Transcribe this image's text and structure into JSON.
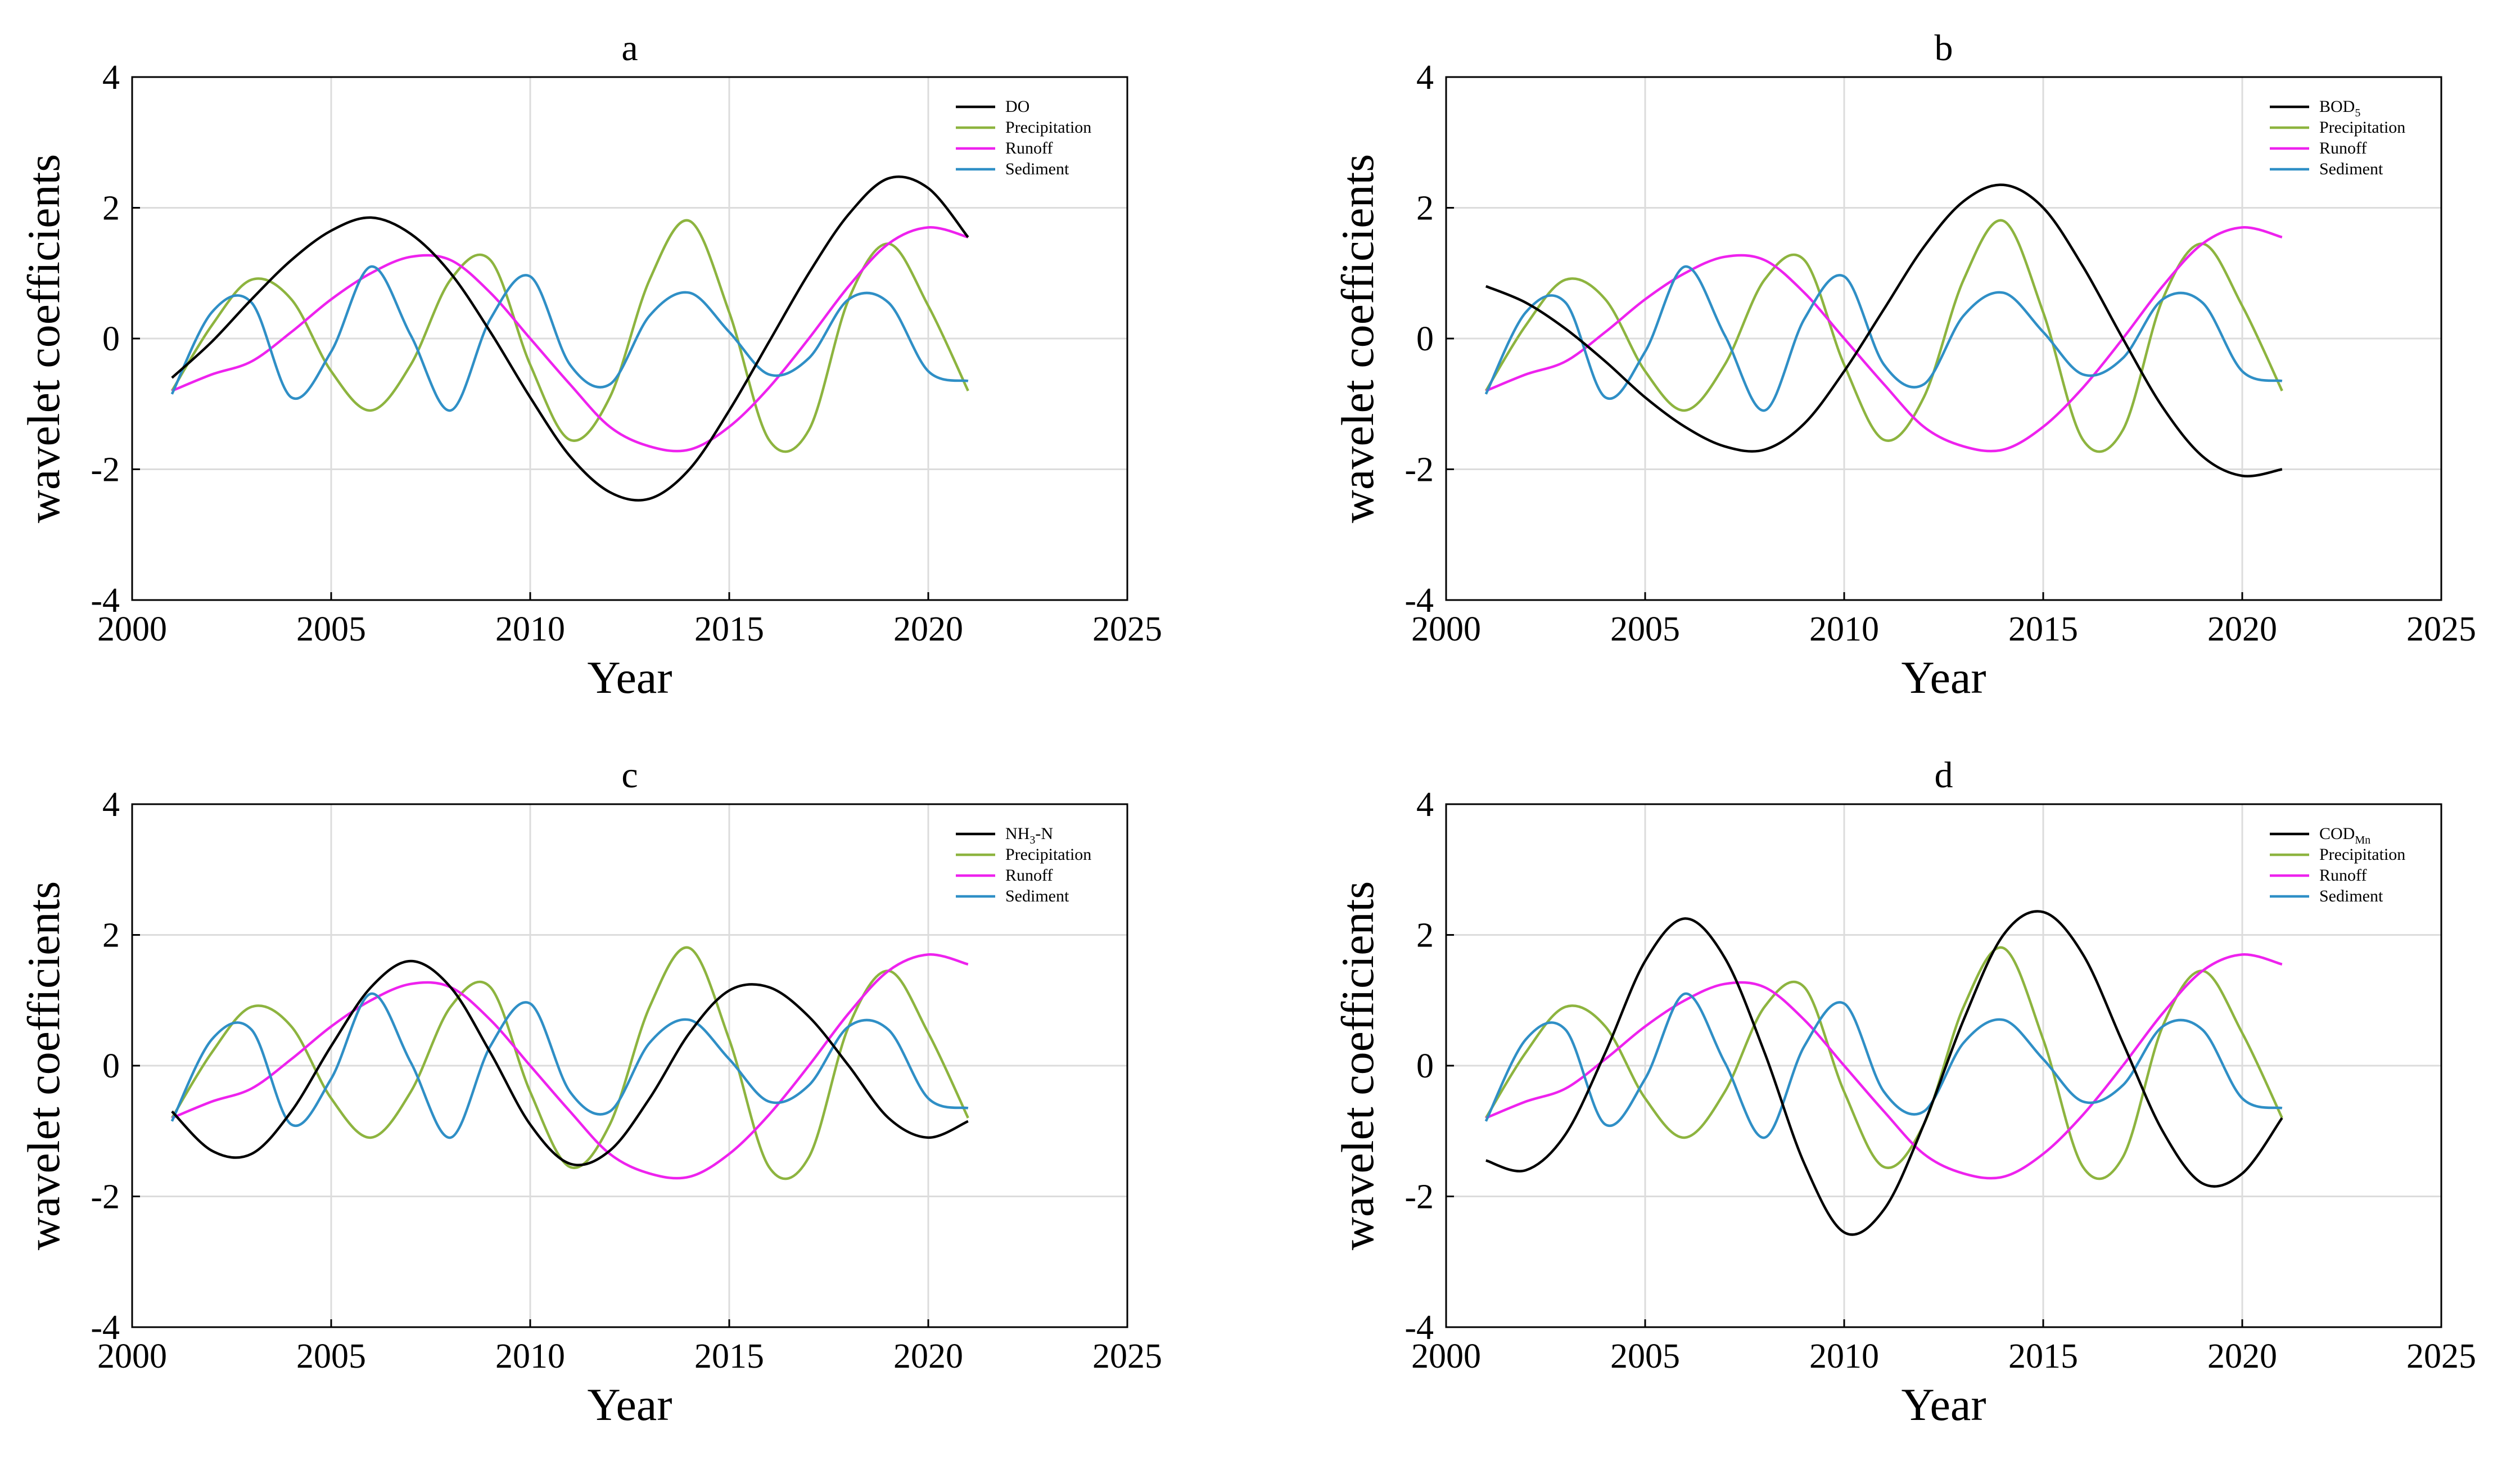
{
  "figure": {
    "series_colors": {
      "target": "#000000",
      "Precipitation": "#8db43f",
      "Runoff": "#ee22ee",
      "Sediment": "#2f8fc6"
    },
    "axis_defaults": {
      "xlabel": "Year",
      "ylabel": "wavelet coefficients",
      "xlim": [
        2000,
        2025
      ],
      "ylim": [
        -4,
        4
      ],
      "xticks": [
        2000,
        2005,
        2010,
        2015,
        2020,
        2025
      ],
      "yticks": [
        -4,
        -2,
        0,
        2,
        4
      ],
      "grid": true
    }
  },
  "chart_data": [
    {
      "panel": "a",
      "type": "line",
      "title": "a",
      "xlabel": "Year",
      "ylabel": "wavelet coefficients",
      "xlim": [
        2000,
        2025
      ],
      "ylim": [
        -4,
        4
      ],
      "legend_position": "top-right",
      "target_legend": {
        "main": "DO",
        "sub": ""
      },
      "x": [
        2001,
        2002,
        2003,
        2004,
        2005,
        2006,
        2007,
        2008,
        2009,
        2010,
        2011,
        2012,
        2013,
        2014,
        2015,
        2016,
        2017,
        2018,
        2019,
        2020,
        2021
      ],
      "series": [
        {
          "name": "DO",
          "key": "target",
          "values": [
            -0.6,
            -0.05,
            0.6,
            1.2,
            1.65,
            1.85,
            1.6,
            1.0,
            0.1,
            -0.9,
            -1.8,
            -2.35,
            -2.45,
            -2.0,
            -1.1,
            -0.05,
            1.0,
            1.9,
            2.45,
            2.3,
            1.55
          ]
        },
        {
          "name": "Precipitation",
          "key": "Precipitation",
          "values": [
            -0.8,
            0.2,
            0.9,
            0.6,
            -0.5,
            -1.1,
            -0.4,
            0.9,
            1.2,
            -0.4,
            -1.55,
            -0.9,
            0.9,
            1.8,
            0.4,
            -1.55,
            -1.4,
            0.6,
            1.45,
            0.5,
            -0.8
          ]
        },
        {
          "name": "Runoff",
          "key": "Runoff",
          "values": [
            -0.8,
            -0.55,
            -0.35,
            0.1,
            0.6,
            1.0,
            1.25,
            1.2,
            0.7,
            0.0,
            -0.7,
            -1.35,
            -1.65,
            -1.7,
            -1.35,
            -0.75,
            0.0,
            0.8,
            1.45,
            1.7,
            1.55
          ]
        },
        {
          "name": "Sediment",
          "key": "Sediment",
          "values": [
            -0.85,
            0.4,
            0.55,
            -0.9,
            -0.2,
            1.1,
            0.05,
            -1.1,
            0.3,
            0.95,
            -0.4,
            -0.7,
            0.35,
            0.7,
            0.1,
            -0.55,
            -0.3,
            0.6,
            0.55,
            -0.5,
            -0.65
          ]
        }
      ]
    },
    {
      "panel": "b",
      "type": "line",
      "title": "b",
      "xlabel": "Year",
      "ylabel": "wavelet coefficients",
      "xlim": [
        2000,
        2025
      ],
      "ylim": [
        -4,
        4
      ],
      "legend_position": "top-right",
      "target_legend": {
        "main": "BOD",
        "sub": "5"
      },
      "x": [
        2001,
        2002,
        2003,
        2004,
        2005,
        2006,
        2007,
        2008,
        2009,
        2010,
        2011,
        2012,
        2013,
        2014,
        2015,
        2016,
        2017,
        2018,
        2019,
        2020,
        2021
      ],
      "series": [
        {
          "name": "BOD5",
          "key": "target",
          "values": [
            0.8,
            0.55,
            0.15,
            -0.35,
            -0.9,
            -1.35,
            -1.65,
            -1.7,
            -1.3,
            -0.5,
            0.45,
            1.4,
            2.1,
            2.35,
            2.0,
            1.1,
            0.0,
            -1.05,
            -1.8,
            -2.1,
            -2.0
          ]
        },
        {
          "name": "Precipitation",
          "key": "Precipitation",
          "values": [
            -0.8,
            0.2,
            0.9,
            0.6,
            -0.5,
            -1.1,
            -0.4,
            0.9,
            1.2,
            -0.4,
            -1.55,
            -0.9,
            0.9,
            1.8,
            0.4,
            -1.55,
            -1.4,
            0.6,
            1.45,
            0.5,
            -0.8
          ]
        },
        {
          "name": "Runoff",
          "key": "Runoff",
          "values": [
            -0.8,
            -0.55,
            -0.35,
            0.1,
            0.6,
            1.0,
            1.25,
            1.2,
            0.7,
            0.0,
            -0.7,
            -1.35,
            -1.65,
            -1.7,
            -1.35,
            -0.75,
            0.0,
            0.8,
            1.45,
            1.7,
            1.55
          ]
        },
        {
          "name": "Sediment",
          "key": "Sediment",
          "values": [
            -0.85,
            0.4,
            0.55,
            -0.9,
            -0.2,
            1.1,
            0.05,
            -1.1,
            0.3,
            0.95,
            -0.4,
            -0.7,
            0.35,
            0.7,
            0.1,
            -0.55,
            -0.3,
            0.6,
            0.55,
            -0.5,
            -0.65
          ]
        }
      ]
    },
    {
      "panel": "c",
      "type": "line",
      "title": "c",
      "xlabel": "Year",
      "ylabel": "wavelet coefficients",
      "xlim": [
        2000,
        2025
      ],
      "ylim": [
        -4,
        4
      ],
      "legend_position": "top-right",
      "target_legend": {
        "main": "NH",
        "sub": "3",
        "suffix": "-N"
      },
      "x": [
        2001,
        2002,
        2003,
        2004,
        2005,
        2006,
        2007,
        2008,
        2009,
        2010,
        2011,
        2012,
        2013,
        2014,
        2015,
        2016,
        2017,
        2018,
        2019,
        2020,
        2021
      ],
      "series": [
        {
          "name": "NH3-N",
          "key": "target",
          "values": [
            -0.7,
            -1.3,
            -1.35,
            -0.7,
            0.3,
            1.2,
            1.6,
            1.2,
            0.2,
            -0.9,
            -1.5,
            -1.3,
            -0.5,
            0.5,
            1.15,
            1.2,
            0.75,
            0.0,
            -0.8,
            -1.1,
            -0.85
          ]
        },
        {
          "name": "Precipitation",
          "key": "Precipitation",
          "values": [
            -0.8,
            0.2,
            0.9,
            0.6,
            -0.5,
            -1.1,
            -0.4,
            0.9,
            1.2,
            -0.4,
            -1.55,
            -0.9,
            0.9,
            1.8,
            0.4,
            -1.55,
            -1.4,
            0.6,
            1.45,
            0.5,
            -0.8
          ]
        },
        {
          "name": "Runoff",
          "key": "Runoff",
          "values": [
            -0.8,
            -0.55,
            -0.35,
            0.1,
            0.6,
            1.0,
            1.25,
            1.2,
            0.7,
            0.0,
            -0.7,
            -1.35,
            -1.65,
            -1.7,
            -1.35,
            -0.75,
            0.0,
            0.8,
            1.45,
            1.7,
            1.55
          ]
        },
        {
          "name": "Sediment",
          "key": "Sediment",
          "values": [
            -0.85,
            0.4,
            0.55,
            -0.9,
            -0.2,
            1.1,
            0.05,
            -1.1,
            0.3,
            0.95,
            -0.4,
            -0.7,
            0.35,
            0.7,
            0.1,
            -0.55,
            -0.3,
            0.6,
            0.55,
            -0.5,
            -0.65
          ]
        }
      ]
    },
    {
      "panel": "d",
      "type": "line",
      "title": "d",
      "xlabel": "Year",
      "ylabel": "wavelet coefficients",
      "xlim": [
        2000,
        2025
      ],
      "ylim": [
        -4,
        4
      ],
      "legend_position": "top-right",
      "target_legend": {
        "main": "COD",
        "sub": "Mn"
      },
      "x": [
        2001,
        2002,
        2003,
        2004,
        2005,
        2006,
        2007,
        2008,
        2009,
        2010,
        2011,
        2012,
        2013,
        2014,
        2015,
        2016,
        2017,
        2018,
        2019,
        2020,
        2021
      ],
      "series": [
        {
          "name": "CODMn",
          "key": "target",
          "values": [
            -1.45,
            -1.6,
            -1.05,
            0.2,
            1.6,
            2.25,
            1.65,
            0.2,
            -1.5,
            -2.55,
            -2.2,
            -0.9,
            0.7,
            2.0,
            2.35,
            1.7,
            0.35,
            -1.0,
            -1.8,
            -1.65,
            -0.8
          ]
        },
        {
          "name": "Precipitation",
          "key": "Precipitation",
          "values": [
            -0.8,
            0.2,
            0.9,
            0.6,
            -0.5,
            -1.1,
            -0.4,
            0.9,
            1.2,
            -0.4,
            -1.55,
            -0.9,
            0.9,
            1.8,
            0.4,
            -1.55,
            -1.4,
            0.6,
            1.45,
            0.5,
            -0.8
          ]
        },
        {
          "name": "Runoff",
          "key": "Runoff",
          "values": [
            -0.8,
            -0.55,
            -0.35,
            0.1,
            0.6,
            1.0,
            1.25,
            1.2,
            0.7,
            0.0,
            -0.7,
            -1.35,
            -1.65,
            -1.7,
            -1.35,
            -0.75,
            0.0,
            0.8,
            1.45,
            1.7,
            1.55
          ]
        },
        {
          "name": "Sediment",
          "key": "Sediment",
          "values": [
            -0.85,
            0.4,
            0.55,
            -0.9,
            -0.2,
            1.1,
            0.05,
            -1.1,
            0.3,
            0.95,
            -0.4,
            -0.7,
            0.35,
            0.7,
            0.1,
            -0.55,
            -0.3,
            0.6,
            0.55,
            -0.5,
            -0.65
          ]
        }
      ]
    }
  ]
}
